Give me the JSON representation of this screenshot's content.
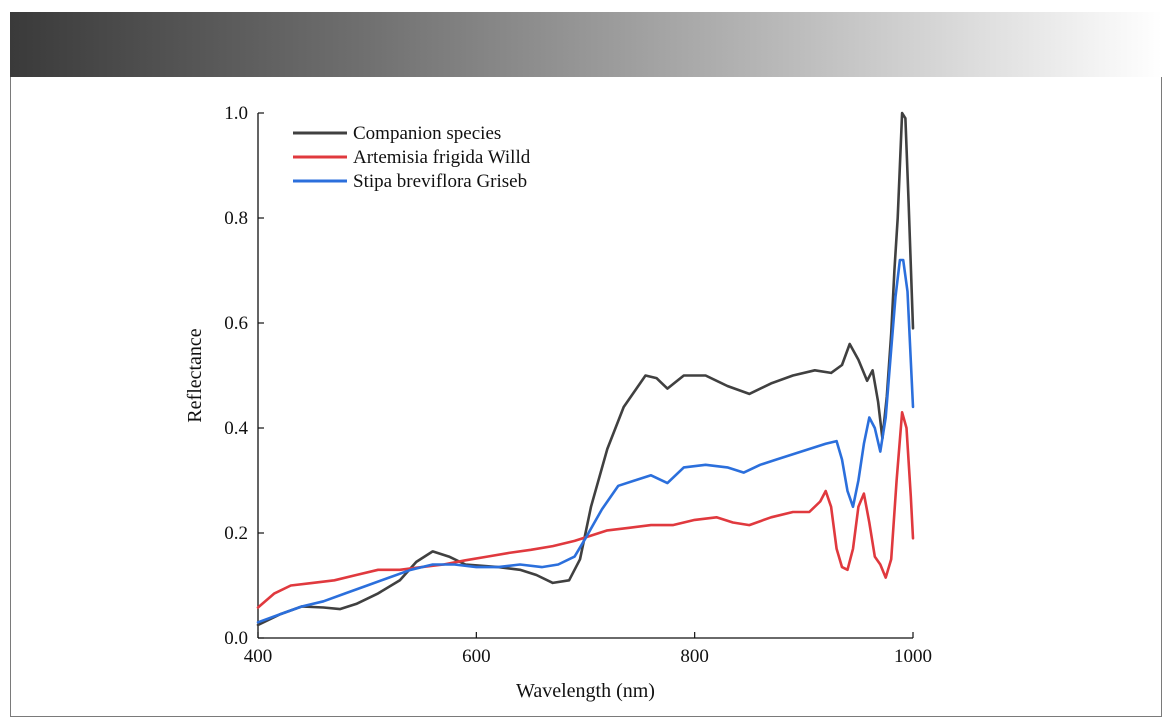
{
  "colors": {
    "header_dark": "#3a3a3a",
    "header_light": "#ffffff",
    "frame_border": "#7a7a7a"
  },
  "chart_data": {
    "type": "line",
    "title": "",
    "xlabel": "Wavelength (nm)",
    "ylabel": "Reflectance",
    "xlim": [
      400,
      1000
    ],
    "ylim": [
      0.0,
      1.0
    ],
    "xticks": [
      400,
      600,
      800,
      1000
    ],
    "yticks": [
      0.0,
      0.2,
      0.4,
      0.6,
      0.8,
      1.0
    ],
    "xtick_labels": [
      "400",
      "600",
      "800",
      "1000"
    ],
    "ytick_labels": [
      "0.0",
      "0.2",
      "0.4",
      "0.6",
      "0.8",
      "1.0"
    ],
    "grid": false,
    "legend_position": "top-left",
    "series": [
      {
        "name": "Companion species",
        "color": "#404040",
        "points": [
          [
            400,
            0.025
          ],
          [
            420,
            0.045
          ],
          [
            440,
            0.06
          ],
          [
            460,
            0.058
          ],
          [
            475,
            0.055
          ],
          [
            490,
            0.065
          ],
          [
            510,
            0.085
          ],
          [
            530,
            0.11
          ],
          [
            545,
            0.145
          ],
          [
            560,
            0.165
          ],
          [
            575,
            0.155
          ],
          [
            590,
            0.14
          ],
          [
            620,
            0.135
          ],
          [
            640,
            0.13
          ],
          [
            655,
            0.12
          ],
          [
            670,
            0.105
          ],
          [
            685,
            0.11
          ],
          [
            695,
            0.15
          ],
          [
            705,
            0.25
          ],
          [
            720,
            0.36
          ],
          [
            735,
            0.44
          ],
          [
            745,
            0.47
          ],
          [
            755,
            0.5
          ],
          [
            765,
            0.495
          ],
          [
            775,
            0.475
          ],
          [
            790,
            0.5
          ],
          [
            810,
            0.5
          ],
          [
            830,
            0.48
          ],
          [
            850,
            0.465
          ],
          [
            870,
            0.485
          ],
          [
            890,
            0.5
          ],
          [
            910,
            0.51
          ],
          [
            925,
            0.505
          ],
          [
            935,
            0.52
          ],
          [
            942,
            0.56
          ],
          [
            950,
            0.53
          ],
          [
            958,
            0.49
          ],
          [
            963,
            0.51
          ],
          [
            968,
            0.45
          ],
          [
            972,
            0.38
          ],
          [
            976,
            0.46
          ],
          [
            980,
            0.58
          ],
          [
            983,
            0.7
          ],
          [
            986,
            0.8
          ],
          [
            988,
            0.9
          ],
          [
            990,
            1.0
          ],
          [
            993,
            0.99
          ],
          [
            996,
            0.83
          ],
          [
            1000,
            0.59
          ]
        ]
      },
      {
        "name": "Artemisia frigida Willd",
        "color": "#e0393e",
        "points": [
          [
            400,
            0.058
          ],
          [
            415,
            0.085
          ],
          [
            430,
            0.1
          ],
          [
            450,
            0.105
          ],
          [
            470,
            0.11
          ],
          [
            490,
            0.12
          ],
          [
            510,
            0.13
          ],
          [
            530,
            0.13
          ],
          [
            550,
            0.135
          ],
          [
            570,
            0.14
          ],
          [
            590,
            0.148
          ],
          [
            610,
            0.155
          ],
          [
            630,
            0.162
          ],
          [
            650,
            0.168
          ],
          [
            670,
            0.175
          ],
          [
            690,
            0.185
          ],
          [
            705,
            0.195
          ],
          [
            720,
            0.205
          ],
          [
            740,
            0.21
          ],
          [
            760,
            0.215
          ],
          [
            780,
            0.215
          ],
          [
            800,
            0.225
          ],
          [
            820,
            0.23
          ],
          [
            835,
            0.22
          ],
          [
            850,
            0.215
          ],
          [
            870,
            0.23
          ],
          [
            890,
            0.24
          ],
          [
            905,
            0.24
          ],
          [
            915,
            0.26
          ],
          [
            920,
            0.28
          ],
          [
            925,
            0.25
          ],
          [
            930,
            0.17
          ],
          [
            935,
            0.135
          ],
          [
            940,
            0.13
          ],
          [
            945,
            0.17
          ],
          [
            950,
            0.25
          ],
          [
            955,
            0.275
          ],
          [
            960,
            0.22
          ],
          [
            965,
            0.155
          ],
          [
            970,
            0.14
          ],
          [
            975,
            0.115
          ],
          [
            980,
            0.15
          ],
          [
            985,
            0.3
          ],
          [
            990,
            0.43
          ],
          [
            994,
            0.4
          ],
          [
            998,
            0.27
          ],
          [
            1000,
            0.19
          ]
        ]
      },
      {
        "name": "Stipa breviflora Griseb",
        "color": "#2b6fdc",
        "points": [
          [
            400,
            0.03
          ],
          [
            420,
            0.045
          ],
          [
            440,
            0.06
          ],
          [
            460,
            0.07
          ],
          [
            480,
            0.085
          ],
          [
            500,
            0.1
          ],
          [
            520,
            0.115
          ],
          [
            540,
            0.13
          ],
          [
            560,
            0.14
          ],
          [
            580,
            0.14
          ],
          [
            600,
            0.135
          ],
          [
            620,
            0.135
          ],
          [
            640,
            0.14
          ],
          [
            660,
            0.135
          ],
          [
            675,
            0.14
          ],
          [
            690,
            0.155
          ],
          [
            700,
            0.19
          ],
          [
            715,
            0.245
          ],
          [
            730,
            0.29
          ],
          [
            745,
            0.3
          ],
          [
            760,
            0.31
          ],
          [
            775,
            0.295
          ],
          [
            790,
            0.325
          ],
          [
            810,
            0.33
          ],
          [
            830,
            0.325
          ],
          [
            845,
            0.315
          ],
          [
            860,
            0.33
          ],
          [
            875,
            0.34
          ],
          [
            890,
            0.35
          ],
          [
            905,
            0.36
          ],
          [
            920,
            0.37
          ],
          [
            930,
            0.375
          ],
          [
            935,
            0.34
          ],
          [
            940,
            0.28
          ],
          [
            945,
            0.25
          ],
          [
            950,
            0.3
          ],
          [
            955,
            0.37
          ],
          [
            960,
            0.42
          ],
          [
            965,
            0.4
          ],
          [
            970,
            0.355
          ],
          [
            975,
            0.42
          ],
          [
            980,
            0.55
          ],
          [
            984,
            0.65
          ],
          [
            988,
            0.72
          ],
          [
            991,
            0.72
          ],
          [
            995,
            0.66
          ],
          [
            1000,
            0.44
          ]
        ]
      }
    ]
  }
}
